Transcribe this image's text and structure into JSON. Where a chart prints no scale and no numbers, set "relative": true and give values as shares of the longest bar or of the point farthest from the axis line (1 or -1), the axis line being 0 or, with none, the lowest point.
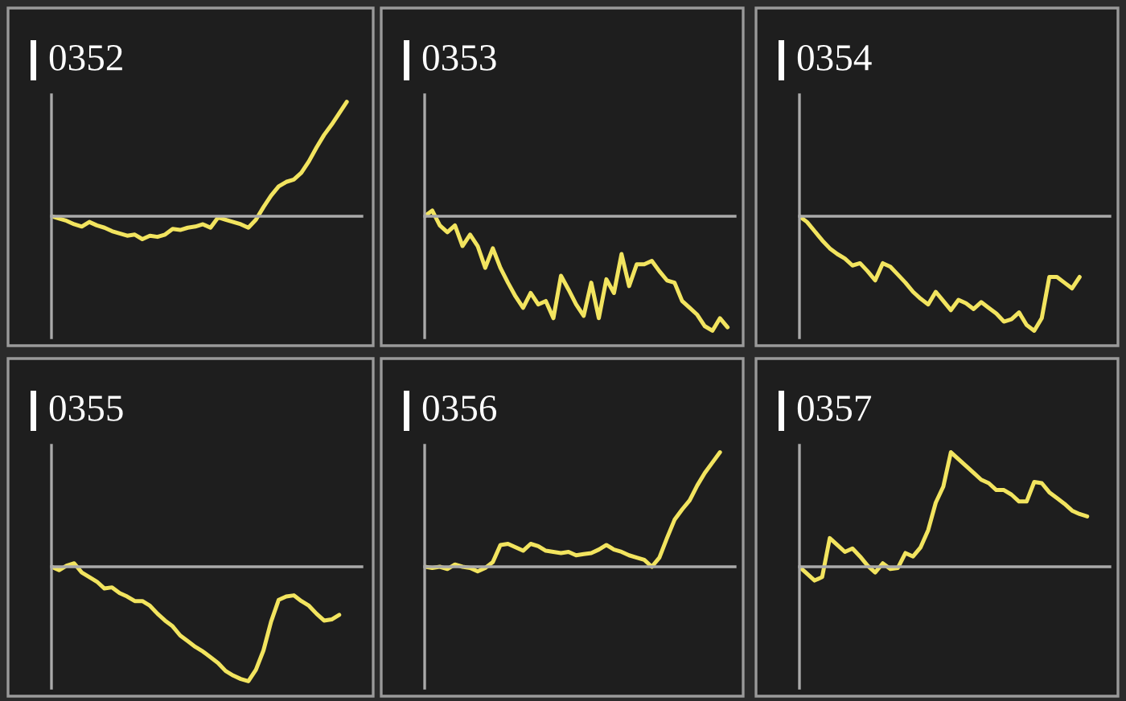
{
  "chart_data": [
    {
      "type": "line",
      "title": "0352",
      "relative": true,
      "categories": [
        null,
        null,
        null,
        null,
        null,
        null,
        null,
        null,
        null,
        null,
        null,
        null,
        null,
        null,
        null,
        null,
        null,
        null,
        null,
        null,
        null,
        null,
        null,
        null,
        null,
        null,
        null,
        null,
        null,
        null,
        null,
        null,
        null,
        null,
        null,
        null,
        null,
        null,
        null,
        null,
        null
      ],
      "series": [
        {
          "color": "#f2e45f",
          "values": [
            0,
            -0.02,
            -0.04,
            -0.07,
            -0.09,
            -0.05,
            -0.08,
            -0.1,
            -0.13,
            -0.15,
            -0.17,
            -0.16,
            -0.2,
            -0.17,
            -0.18,
            -0.16,
            -0.11,
            -0.12,
            -0.1,
            -0.09,
            -0.07,
            -0.1,
            -0.01,
            -0.03,
            -0.05,
            -0.07,
            -0.1,
            -0.03,
            0.08,
            0.18,
            0.26,
            0.3,
            0.32,
            0.38,
            0.48,
            0.6,
            0.71,
            0.8,
            0.9,
            1.0,
            null
          ]
        }
      ]
    },
    {
      "type": "line",
      "title": "0353",
      "relative": true,
      "categories": [
        null,
        null,
        null,
        null,
        null,
        null,
        null,
        null,
        null,
        null,
        null,
        null,
        null,
        null,
        null,
        null,
        null,
        null,
        null,
        null,
        null,
        null,
        null,
        null,
        null,
        null,
        null,
        null,
        null,
        null,
        null,
        null,
        null,
        null,
        null,
        null,
        null,
        null,
        null,
        null,
        null
      ],
      "series": [
        {
          "color": "#f2e45f",
          "values": [
            0,
            0.05,
            -0.08,
            -0.14,
            -0.08,
            -0.26,
            -0.16,
            -0.26,
            -0.45,
            -0.28,
            -0.45,
            -0.58,
            -0.7,
            -0.8,
            -0.67,
            -0.77,
            -0.74,
            -0.89,
            -0.52,
            -0.64,
            -0.77,
            -0.87,
            -0.58,
            -0.89,
            -0.55,
            -0.67,
            -0.33,
            -0.61,
            -0.42,
            -0.42,
            -0.39,
            -0.48,
            -0.56,
            -0.58,
            -0.74,
            -0.8,
            -0.86,
            -0.96,
            -1.0,
            -0.89,
            -0.97
          ]
        }
      ]
    },
    {
      "type": "line",
      "title": "0354",
      "relative": true,
      "categories": [
        null,
        null,
        null,
        null,
        null,
        null,
        null,
        null,
        null,
        null,
        null,
        null,
        null,
        null,
        null,
        null,
        null,
        null,
        null,
        null,
        null,
        null,
        null,
        null,
        null,
        null,
        null,
        null,
        null,
        null,
        null,
        null,
        null,
        null,
        null,
        null,
        null,
        null,
        null,
        null,
        null
      ],
      "series": [
        {
          "color": "#f2e45f",
          "values": [
            0,
            -0.05,
            -0.13,
            -0.21,
            -0.28,
            -0.33,
            -0.37,
            -0.43,
            -0.41,
            -0.48,
            -0.56,
            -0.41,
            -0.44,
            -0.51,
            -0.58,
            -0.66,
            -0.72,
            -0.77,
            -0.66,
            -0.74,
            -0.82,
            -0.73,
            -0.76,
            -0.81,
            -0.75,
            -0.8,
            -0.85,
            -0.92,
            -0.9,
            -0.84,
            -0.95,
            -1.0,
            -0.89,
            -0.53,
            -0.53,
            -0.58,
            -0.63,
            -0.53,
            null,
            null,
            null
          ]
        }
      ]
    },
    {
      "type": "line",
      "title": "0355",
      "relative": true,
      "categories": [
        null,
        null,
        null,
        null,
        null,
        null,
        null,
        null,
        null,
        null,
        null,
        null,
        null,
        null,
        null,
        null,
        null,
        null,
        null,
        null,
        null,
        null,
        null,
        null,
        null,
        null,
        null,
        null,
        null,
        null,
        null,
        null,
        null,
        null,
        null,
        null,
        null,
        null,
        null,
        null,
        null
      ],
      "series": [
        {
          "color": "#f2e45f",
          "values": [
            0,
            -0.03,
            0.01,
            0.03,
            -0.05,
            -0.09,
            -0.13,
            -0.19,
            -0.18,
            -0.23,
            -0.26,
            -0.3,
            -0.3,
            -0.34,
            -0.41,
            -0.47,
            -0.52,
            -0.6,
            -0.65,
            -0.7,
            -0.74,
            -0.79,
            -0.84,
            -0.91,
            -0.95,
            -0.98,
            -1.0,
            -0.9,
            -0.73,
            -0.48,
            -0.29,
            -0.26,
            -0.25,
            -0.3,
            -0.34,
            -0.41,
            -0.47,
            -0.46,
            -0.42,
            null,
            null
          ]
        }
      ]
    },
    {
      "type": "line",
      "title": "0356",
      "relative": true,
      "categories": [
        null,
        null,
        null,
        null,
        null,
        null,
        null,
        null,
        null,
        null,
        null,
        null,
        null,
        null,
        null,
        null,
        null,
        null,
        null,
        null,
        null,
        null,
        null,
        null,
        null,
        null,
        null,
        null,
        null,
        null,
        null,
        null,
        null,
        null,
        null,
        null,
        null,
        null,
        null,
        null,
        null
      ],
      "series": [
        {
          "color": "#f2e45f",
          "values": [
            0,
            -0.01,
            0,
            -0.02,
            0.02,
            0,
            -0.01,
            -0.04,
            -0.01,
            0.04,
            0.19,
            0.2,
            0.17,
            0.14,
            0.2,
            0.18,
            0.14,
            0.13,
            0.12,
            0.13,
            0.1,
            0.11,
            0.12,
            0.15,
            0.19,
            0.15,
            0.13,
            0.1,
            0.08,
            0.06,
            0,
            0.08,
            0.25,
            0.41,
            0.5,
            0.58,
            0.71,
            0.82,
            0.91,
            1.0,
            null
          ]
        }
      ]
    },
    {
      "type": "line",
      "title": "0357",
      "relative": true,
      "categories": [
        null,
        null,
        null,
        null,
        null,
        null,
        null,
        null,
        null,
        null,
        null,
        null,
        null,
        null,
        null,
        null,
        null,
        null,
        null,
        null,
        null,
        null,
        null,
        null,
        null,
        null,
        null,
        null,
        null,
        null,
        null,
        null,
        null,
        null,
        null,
        null,
        null,
        null,
        null,
        null,
        null
      ],
      "series": [
        {
          "color": "#f2e45f",
          "values": [
            0,
            -0.06,
            -0.12,
            -0.09,
            0.25,
            0.19,
            0.13,
            0.16,
            0.09,
            0.01,
            -0.05,
            0.03,
            -0.02,
            -0.01,
            0.12,
            0.09,
            0.17,
            0.32,
            0.56,
            0.7,
            1.0,
            0.94,
            0.88,
            0.82,
            0.76,
            0.73,
            0.67,
            0.67,
            0.63,
            0.57,
            0.57,
            0.74,
            0.73,
            0.65,
            0.6,
            0.55,
            0.49,
            0.46,
            0.44,
            null,
            null
          ]
        }
      ]
    }
  ]
}
